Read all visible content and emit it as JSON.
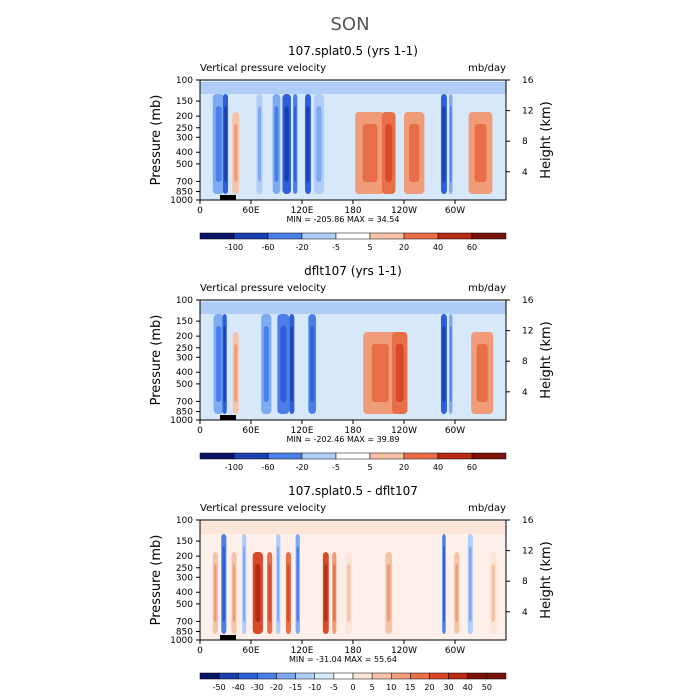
{
  "page_title": "SON",
  "chart_data": [
    {
      "type": "heatmap",
      "title": "107.splat0.5 (yrs 1-1)",
      "left_label": "Vertical pressure velocity",
      "right_label": "mb/day",
      "ylabel": "Pressure (mb)",
      "ylabel_right": "Height (km)",
      "y_ticks": [
        "100",
        "150",
        "200",
        "250",
        "300",
        "400",
        "500",
        "700",
        "850",
        "1000"
      ],
      "y_ticks_right": [
        "16",
        "12",
        "8",
        "4"
      ],
      "x_ticks": [
        "0",
        "60E",
        "120E",
        "180",
        "120W",
        "60W"
      ],
      "x_range": [
        0,
        360
      ],
      "stats": "MIN = -205.86   MAX =  34.54",
      "colorbar_labels": [
        "-100",
        "-60",
        "-20",
        "-5",
        "5",
        "20",
        "40",
        "60"
      ],
      "bands": [
        {
          "lon": 22,
          "w": 14,
          "v": -3
        },
        {
          "lon": 30,
          "w": 6,
          "v": -5
        },
        {
          "lon": 42,
          "w": 8,
          "v": 2
        },
        {
          "lon": 70,
          "w": 7,
          "v": -2
        },
        {
          "lon": 90,
          "w": 9,
          "v": -3
        },
        {
          "lon": 102,
          "w": 10,
          "v": -5
        },
        {
          "lon": 112,
          "w": 5,
          "v": -4
        },
        {
          "lon": 127,
          "w": 7,
          "v": -5
        },
        {
          "lon": 140,
          "w": 12,
          "v": -2
        },
        {
          "lon": 200,
          "w": 35,
          "v": 3
        },
        {
          "lon": 222,
          "w": 16,
          "v": 4
        },
        {
          "lon": 252,
          "w": 24,
          "v": 3
        },
        {
          "lon": 287,
          "w": 7,
          "v": -5
        },
        {
          "lon": 295,
          "w": 4,
          "v": -3
        },
        {
          "lon": 330,
          "w": 28,
          "v": 3
        }
      ]
    },
    {
      "type": "heatmap",
      "title": "dflt107 (yrs 1-1)",
      "left_label": "Vertical pressure velocity",
      "right_label": "mb/day",
      "ylabel": "Pressure (mb)",
      "ylabel_right": "Height (km)",
      "y_ticks": [
        "100",
        "150",
        "200",
        "250",
        "300",
        "400",
        "500",
        "700",
        "850",
        "1000"
      ],
      "y_ticks_right": [
        "16",
        "12",
        "8",
        "4"
      ],
      "x_ticks": [
        "0",
        "60E",
        "120E",
        "180",
        "120W",
        "60W"
      ],
      "x_range": [
        0,
        360
      ],
      "stats": "MIN = -202.46   MAX =  39.89",
      "colorbar_labels": [
        "-100",
        "-60",
        "-20",
        "-5",
        "5",
        "20",
        "40",
        "60"
      ],
      "bands": [
        {
          "lon": 22,
          "w": 12,
          "v": -3
        },
        {
          "lon": 29,
          "w": 5,
          "v": -5
        },
        {
          "lon": 42,
          "w": 7,
          "v": 2
        },
        {
          "lon": 78,
          "w": 12,
          "v": -3
        },
        {
          "lon": 98,
          "w": 14,
          "v": -4
        },
        {
          "lon": 108,
          "w": 6,
          "v": -5
        },
        {
          "lon": 132,
          "w": 9,
          "v": -4
        },
        {
          "lon": 212,
          "w": 40,
          "v": 3
        },
        {
          "lon": 235,
          "w": 18,
          "v": 4
        },
        {
          "lon": 287,
          "w": 7,
          "v": -5
        },
        {
          "lon": 295,
          "w": 4,
          "v": -3
        },
        {
          "lon": 332,
          "w": 26,
          "v": 3
        }
      ]
    },
    {
      "type": "heatmap",
      "title": "107.splat0.5 - dflt107",
      "left_label": "Vertical pressure velocity",
      "right_label": "mb/day",
      "ylabel": "Pressure (mb)",
      "ylabel_right": "Height (km)",
      "y_ticks": [
        "100",
        "150",
        "200",
        "250",
        "300",
        "400",
        "500",
        "700",
        "850",
        "1000"
      ],
      "y_ticks_right": [
        "16",
        "12",
        "8",
        "4"
      ],
      "x_ticks": [
        "0",
        "60E",
        "120E",
        "180",
        "120W",
        "60W"
      ],
      "x_range": [
        0,
        360
      ],
      "stats": "MIN = -31.04   MAX =  55.64",
      "colorbar_labels": [
        "-50",
        "-40",
        "-30",
        "-20",
        "-15",
        "-10",
        "-5",
        "0",
        "5",
        "10",
        "15",
        "20",
        "30",
        "40",
        "50"
      ],
      "bands": [
        {
          "lon": 18,
          "w": 6,
          "v": 2
        },
        {
          "lon": 28,
          "w": 6,
          "v": -4
        },
        {
          "lon": 40,
          "w": 6,
          "v": 2
        },
        {
          "lon": 52,
          "w": 5,
          "v": -2
        },
        {
          "lon": 68,
          "w": 12,
          "v": 5
        },
        {
          "lon": 82,
          "w": 6,
          "v": 4
        },
        {
          "lon": 92,
          "w": 5,
          "v": -2
        },
        {
          "lon": 104,
          "w": 6,
          "v": 4
        },
        {
          "lon": 115,
          "w": 5,
          "v": -3
        },
        {
          "lon": 148,
          "w": 7,
          "v": 5
        },
        {
          "lon": 158,
          "w": 5,
          "v": 3
        },
        {
          "lon": 175,
          "w": 8,
          "v": 1
        },
        {
          "lon": 222,
          "w": 8,
          "v": 2
        },
        {
          "lon": 287,
          "w": 4,
          "v": -4
        },
        {
          "lon": 302,
          "w": 6,
          "v": 2
        },
        {
          "lon": 318,
          "w": 6,
          "v": -2
        },
        {
          "lon": 345,
          "w": 8,
          "v": 1
        }
      ]
    }
  ],
  "colors": {
    "neg": [
      "#0a1466",
      "#1b3fb0",
      "#2c5fd8",
      "#4a7fe8",
      "#7ea9f3",
      "#b0cdf8",
      "#d7e8fb"
    ],
    "pos": [
      "#fbe4d8",
      "#f6c3a8",
      "#f09c78",
      "#e86e48",
      "#d8492a",
      "#b82a14",
      "#7a1208"
    ],
    "zero": "#ffffff"
  }
}
